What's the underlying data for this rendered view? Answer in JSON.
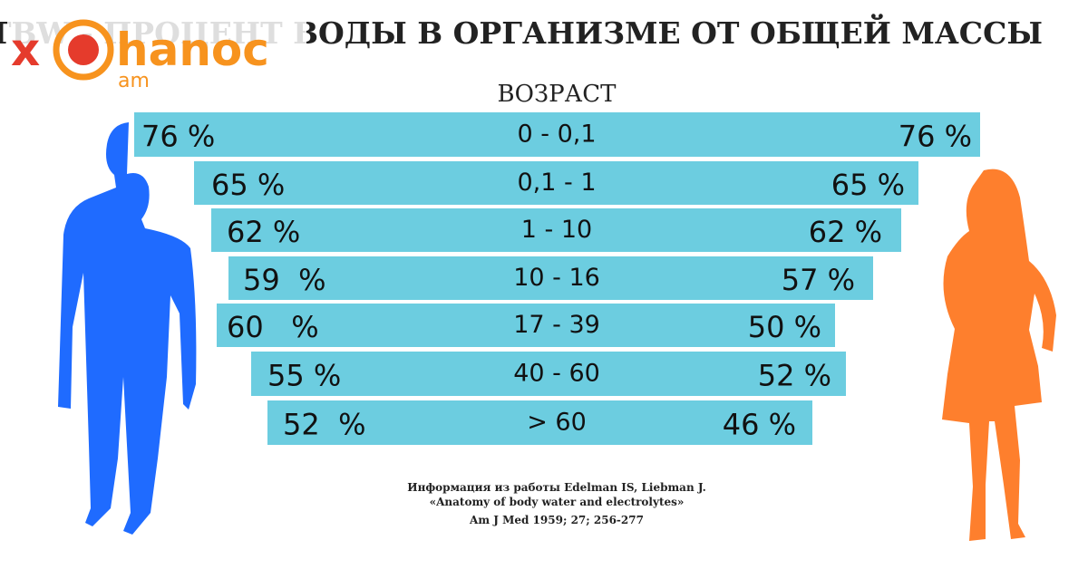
{
  "header": {
    "title": "TBW - ПРОЦЕНТ ВОДЫ В ОРГАНИЗМЕ ОТ ОБЩЕЙ МАССЫ",
    "subtitle": "ВОЗРАСТ"
  },
  "logo": {
    "x": "x",
    "name": "hanoc",
    "domain": "am"
  },
  "rows": [
    {
      "age": "0 - 0,1",
      "male": "76 %",
      "female": "76 %"
    },
    {
      "age": "0,1 - 1",
      "male": "65 %",
      "female": "65 %"
    },
    {
      "age": "1 - 10",
      "male": "62 %",
      "female": "62 %"
    },
    {
      "age": "10 - 16",
      "male": "59  %",
      "female": "57 %"
    },
    {
      "age": "17 - 39",
      "male": "60   %",
      "female": "50 %"
    },
    {
      "age": "40 - 60",
      "male": "55 %",
      "female": "52 %"
    },
    {
      "age": "> 60",
      "male": "52  %",
      "female": "46 %"
    }
  ],
  "source": [
    "Информация из работы Edelman IS, Liebman J.",
    "«Anatomy of body water and electrolytes»",
    "Am J Med 1959; 27; 256-277"
  ]
}
